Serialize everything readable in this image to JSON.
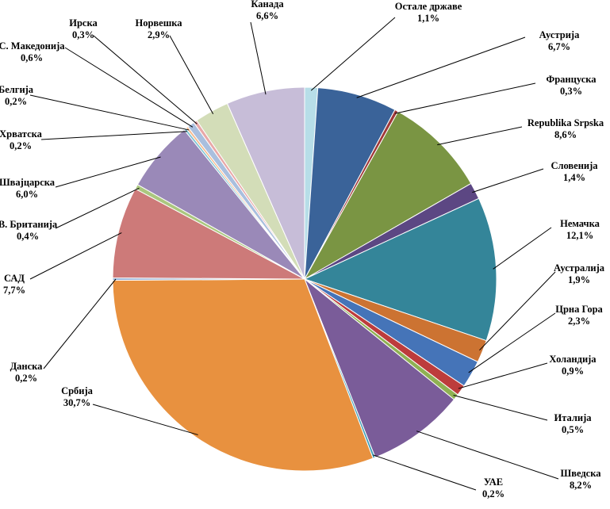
{
  "chart_data": {
    "type": "pie",
    "title": "",
    "series": [
      {
        "slices": [
          {
            "label": "Остале државе",
            "percent_text": "1,1%",
            "value": 1.1,
            "color": "#b7dee8"
          },
          {
            "label": "Аустрија",
            "percent_text": "6,7%",
            "value": 6.7,
            "color": "#3a6399"
          },
          {
            "label": "Француска",
            "percent_text": "0,3%",
            "value": 0.3,
            "color": "#a0393a"
          },
          {
            "label": "Republika Srpska",
            "percent_text": "8,6%",
            "value": 8.6,
            "color": "#7a9543"
          },
          {
            "label": "Словенија",
            "percent_text": "1,4%",
            "value": 1.4,
            "color": "#5c4783"
          },
          {
            "label": "Немачка",
            "percent_text": "12,1%",
            "value": 12.1,
            "color": "#348599"
          },
          {
            "label": "Аустралија",
            "percent_text": "1,9%",
            "value": 1.9,
            "color": "#cc7332"
          },
          {
            "label": "Црна Гора",
            "percent_text": "2,3%",
            "value": 2.3,
            "color": "#4574b8"
          },
          {
            "label": "Холандија",
            "percent_text": "0,9%",
            "value": 0.9,
            "color": "#bd3c3c"
          },
          {
            "label": "Италија",
            "percent_text": "0,5%",
            "value": 0.5,
            "color": "#8fb153"
          },
          {
            "label": "Шведска",
            "percent_text": "8,2%",
            "value": 8.2,
            "color": "#7a5c99"
          },
          {
            "label": "УАЕ",
            "percent_text": "0,2%",
            "value": 0.2,
            "color": "#3d9eb8"
          },
          {
            "label": "Србија",
            "percent_text": "30,7%",
            "value": 30.7,
            "color": "#e8913f"
          },
          {
            "label": "Данска",
            "percent_text": "0,2%",
            "value": 0.2,
            "color": "#94b0d6"
          },
          {
            "label": "САД",
            "percent_text": "7,7%",
            "value": 7.7,
            "color": "#cd7a79"
          },
          {
            "label": "В. Британија",
            "percent_text": "0,4%",
            "value": 0.4,
            "color": "#abc77f"
          },
          {
            "label": "Швајцарска",
            "percent_text": "6,0%",
            "value": 6.0,
            "color": "#9a89b8"
          },
          {
            "label": "Хрватска",
            "percent_text": "0,2%",
            "value": 0.2,
            "color": "#7fc3d4"
          },
          {
            "label": "Белгија",
            "percent_text": "0,2%",
            "value": 0.2,
            "color": "#f5b98c"
          },
          {
            "label": "С. Македонија",
            "percent_text": "0,6%",
            "value": 0.6,
            "color": "#a9bfde"
          },
          {
            "label": "Ирска",
            "percent_text": "0,3%",
            "value": 0.3,
            "color": "#e8a8a8"
          },
          {
            "label": "Норвешка",
            "percent_text": "2,9%",
            "value": 2.9,
            "color": "#d3ddb8"
          },
          {
            "label": "Канада",
            "percent_text": "6,6%",
            "value": 6.6,
            "color": "#c7bdd8"
          }
        ]
      }
    ],
    "legend": "none",
    "start_angle_deg": -90,
    "direction": "clockwise"
  }
}
